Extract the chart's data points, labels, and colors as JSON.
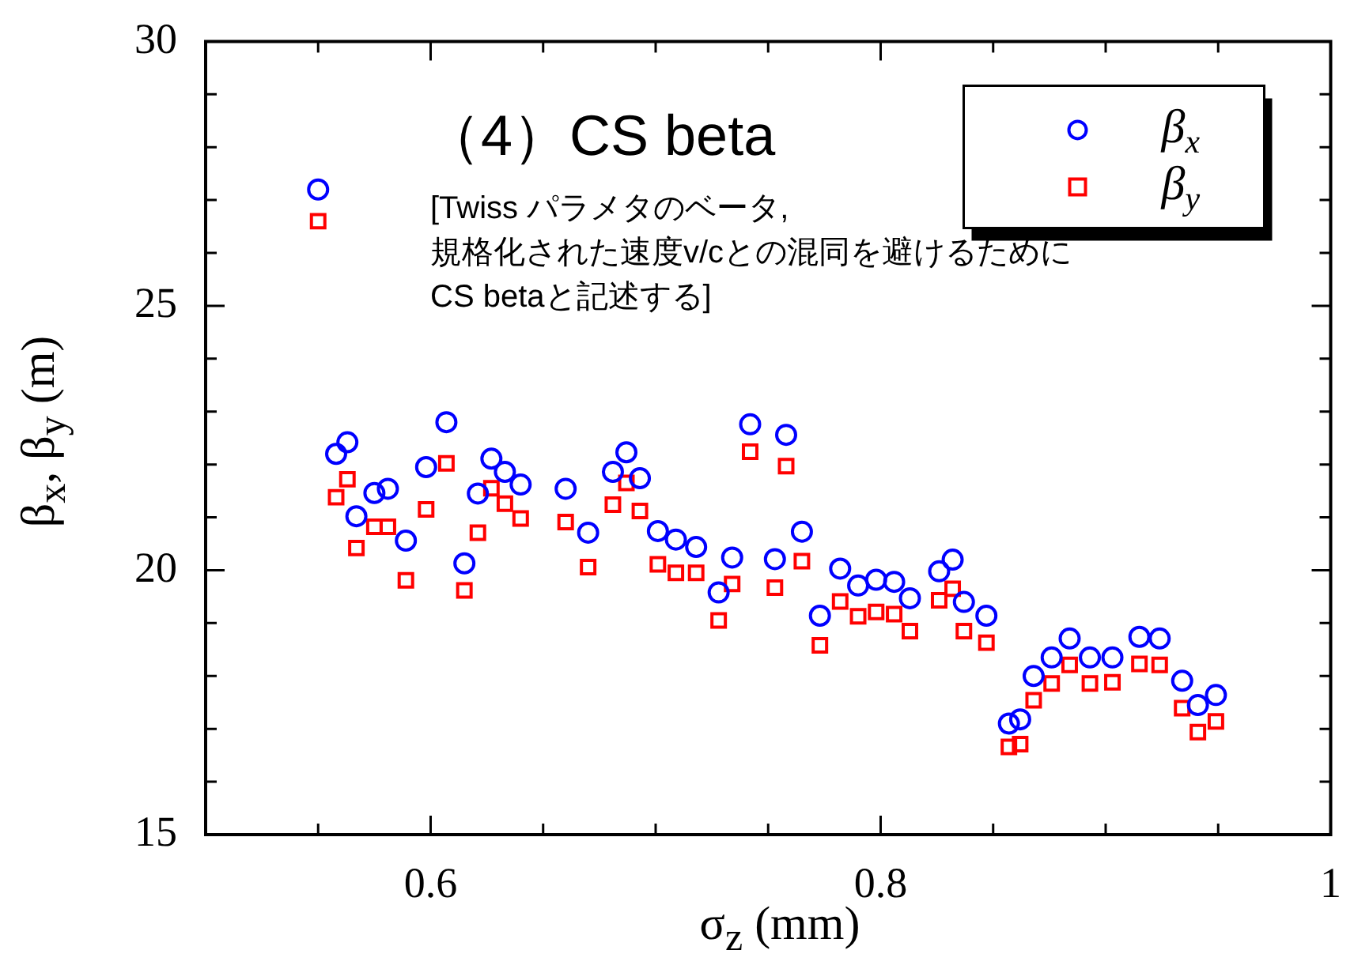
{
  "chart_data": {
    "type": "scatter",
    "xlabel": "σ$_{z}$ (mm)",
    "ylabel": "β$_{x}$, β$_{y}$ (m)",
    "annotations": [
      "（4）CS beta",
      "[Twiss パラメタのベータ,\n規格化された速度v/cとの混同を避けるために\nCS betaと記述する]"
    ],
    "xlim": [
      0.5,
      1
    ],
    "ylim": [
      15,
      30
    ],
    "xticks": [
      {
        "value": 0.55,
        "label": null
      },
      0.6,
      {
        "value": 0.65,
        "label": null
      },
      {
        "value": 0.7,
        "label": null
      },
      {
        "value": 0.75,
        "label": null
      },
      0.8,
      {
        "value": 0.85,
        "label": null
      },
      {
        "value": 0.9,
        "label": null
      },
      {
        "value": 0.95,
        "label": null
      },
      1
    ],
    "yticks": [
      15,
      {
        "value": 16,
        "label": null
      },
      {
        "value": 17,
        "label": null
      },
      {
        "value": 18,
        "label": null
      },
      {
        "value": 19,
        "label": null
      },
      20,
      {
        "value": 21,
        "label": null
      },
      {
        "value": 22,
        "label": null
      },
      {
        "value": 23,
        "label": null
      },
      {
        "value": 24,
        "label": null
      },
      25,
      {
        "value": 26,
        "label": null
      },
      {
        "value": 27,
        "label": null
      },
      {
        "value": 28,
        "label": null
      },
      {
        "value": 29,
        "label": null
      },
      30
    ],
    "legend": "top right",
    "grid": false,
    "x": [
      0.55,
      0.558,
      0.563,
      0.567,
      0.575,
      0.581,
      0.589,
      0.598,
      0.607,
      0.615,
      0.621,
      0.627,
      0.633,
      0.64,
      0.66,
      0.67,
      0.681,
      0.687,
      0.693,
      0.701,
      0.709,
      0.718,
      0.728,
      0.734,
      0.742,
      0.753,
      0.758,
      0.765,
      0.773,
      0.782,
      0.79,
      0.798,
      0.806,
      0.813,
      0.826,
      0.832,
      0.837,
      0.847,
      0.857,
      0.862,
      0.868,
      0.876,
      0.884,
      0.893,
      0.903,
      0.915,
      0.924,
      0.934,
      0.941,
      0.949
    ],
    "series": [
      {
        "name": "β$_{x}$",
        "color": "#0000ff",
        "marker": "circle",
        "values": [
          27.2,
          22.2,
          22.42,
          21.02,
          21.46,
          21.54,
          20.56,
          21.95,
          22.8,
          20.13,
          21.45,
          22.11,
          21.86,
          21.62,
          21.54,
          20.71,
          21.86,
          22.23,
          21.74,
          20.74,
          20.58,
          20.44,
          19.58,
          20.24,
          22.76,
          20.21,
          22.56,
          20.73,
          19.14,
          20.03,
          19.71,
          19.82,
          19.78,
          19.47,
          19.98,
          20.2,
          19.4,
          19.14,
          17.1,
          17.18,
          18.0,
          18.35,
          18.71,
          18.35,
          18.35,
          18.74,
          18.71,
          17.91,
          17.45,
          17.64
        ]
      },
      {
        "name": "β$_{y}$",
        "color": "#ff0000",
        "marker": "square",
        "values": [
          26.6,
          21.38,
          21.72,
          20.42,
          20.82,
          20.82,
          19.81,
          21.15,
          22.02,
          19.62,
          20.71,
          21.55,
          21.26,
          20.98,
          20.91,
          20.06,
          21.24,
          21.65,
          21.12,
          20.11,
          19.95,
          19.95,
          19.05,
          19.74,
          22.24,
          19.67,
          21.97,
          20.17,
          18.58,
          19.41,
          19.13,
          19.21,
          19.17,
          18.85,
          19.43,
          19.65,
          18.85,
          18.63,
          16.66,
          16.71,
          17.54,
          17.86,
          18.21,
          17.86,
          17.88,
          18.23,
          18.21,
          17.39,
          16.94,
          17.14
        ]
      }
    ]
  }
}
